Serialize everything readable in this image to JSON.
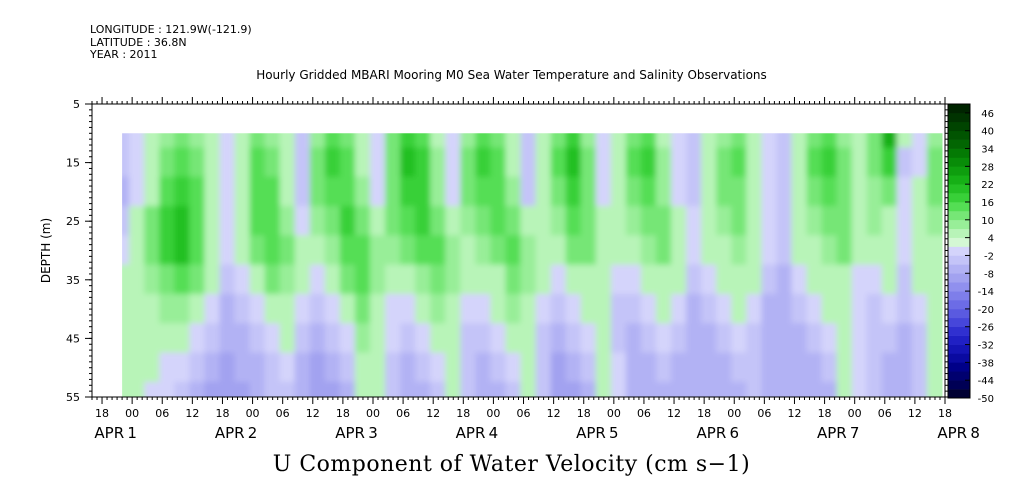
{
  "meta": {
    "longitude": "LONGITUDE : 121.9W(-121.9)",
    "latitude": "LATITUDE : 36.8N",
    "year": "YEAR : 2011"
  },
  "chart_title": "Hourly Gridded MBARI Mooring M0 Sea Water Temperature and Salinity Observations",
  "bottom_title": "U Component of Water Velocity (cm s−1)",
  "chart_data": {
    "type": "heatmap",
    "title": "Hourly Gridded MBARI Mooring M0 Sea Water Temperature and Salinity Observations",
    "xlabel": "",
    "ylabel": "DEPTH (m)",
    "colorbar_label": "U Component of Water Velocity (cm s−1)",
    "y_range": [
      55,
      5
    ],
    "y_ticks": [
      5,
      15,
      25,
      35,
      45,
      55
    ],
    "data_depth_range": [
      10,
      55
    ],
    "x_start_hour": 16,
    "x_end_hour": 186,
    "data_start_hour": 22,
    "x_hour_ticks": [
      "18",
      "00",
      "06",
      "12",
      "18",
      "00",
      "06",
      "12",
      "18",
      "00",
      "06",
      "12",
      "18",
      "00",
      "06",
      "12",
      "18",
      "00",
      "06",
      "12",
      "18",
      "00",
      "06",
      "12",
      "18",
      "00",
      "06",
      "12",
      "18",
      "00",
      "06",
      "12"
    ],
    "x_day_labels": [
      "APR 1",
      "APR 2",
      "APR 3",
      "APR 4",
      "APR 5",
      "APR 6",
      "APR 7",
      "APR 8"
    ],
    "colorbar_ticks": [
      "46",
      "40",
      "34",
      "28",
      "22",
      "16",
      "10",
      "4",
      "-2",
      "-8",
      "-14",
      "-20",
      "-26",
      "-32",
      "-38",
      "-44",
      "-50"
    ],
    "colorbar_levels": [
      -50,
      -47,
      -44,
      -41,
      -38,
      -35,
      -32,
      -29,
      -26,
      -23,
      -20,
      -17,
      -14,
      -11,
      -8,
      -5,
      -2,
      1,
      4,
      7,
      10,
      13,
      16,
      19,
      22,
      25,
      28,
      31,
      34,
      37,
      40,
      43,
      46,
      49
    ],
    "colorbar_colors": [
      "#000033",
      "#000055",
      "#00006f",
      "#000088",
      "#0a0aa0",
      "#1414b4",
      "#2020c4",
      "#3030d0",
      "#4646da",
      "#5a5ae0",
      "#6c6ce6",
      "#7e7eea",
      "#9090ee",
      "#a2a2f0",
      "#b2b2f4",
      "#c4c4f8",
      "#d4d4fb",
      "#d4f8d4",
      "#b8f4b8",
      "#98ee98",
      "#76e676",
      "#54de54",
      "#38d038",
      "#24c024",
      "#16b016",
      "#0e9e0e",
      "#088c08",
      "#047a04",
      "#026602",
      "#015401",
      "#004400",
      "#003300",
      "#002400"
    ],
    "column_hours": [
      22,
      25,
      28,
      31,
      34,
      37,
      40,
      43,
      46,
      49,
      52,
      55,
      58,
      61,
      64,
      67,
      70,
      73,
      76,
      79,
      82,
      85,
      88,
      91,
      94,
      97,
      100,
      103,
      106,
      109,
      112,
      115,
      118,
      121,
      124,
      127,
      130,
      133,
      136,
      139,
      142,
      145,
      148,
      151,
      154,
      157,
      160,
      163,
      166,
      169,
      172,
      175,
      178,
      181,
      184
    ],
    "row_depths": [
      10,
      15,
      20,
      25,
      30,
      35,
      40,
      45,
      50,
      55
    ],
    "u_values": [
      [
        -5,
        -2,
        4,
        7,
        10,
        7,
        4,
        -2,
        4,
        10,
        7,
        4,
        -5,
        7,
        13,
        10,
        4,
        -2,
        10,
        16,
        13,
        4,
        -2,
        7,
        13,
        10,
        4,
        -5,
        4,
        10,
        16,
        7,
        -2,
        4,
        10,
        13,
        4,
        -2,
        -5,
        4,
        7,
        10,
        4,
        -2,
        -5,
        4,
        10,
        13,
        7,
        4,
        10,
        22,
        4,
        -2,
        7
      ],
      [
        -5,
        -2,
        4,
        10,
        13,
        10,
        4,
        -2,
        4,
        13,
        10,
        4,
        -5,
        10,
        16,
        13,
        4,
        -2,
        10,
        19,
        16,
        7,
        -2,
        10,
        16,
        13,
        4,
        -5,
        4,
        13,
        19,
        10,
        -2,
        4,
        13,
        16,
        7,
        -2,
        -5,
        4,
        10,
        13,
        4,
        -2,
        -5,
        4,
        13,
        16,
        10,
        4,
        10,
        16,
        -5,
        -2,
        10
      ],
      [
        -8,
        -2,
        4,
        13,
        16,
        13,
        4,
        -2,
        4,
        13,
        13,
        4,
        -5,
        10,
        13,
        13,
        7,
        -2,
        10,
        16,
        16,
        7,
        -2,
        10,
        13,
        13,
        7,
        -5,
        4,
        10,
        16,
        10,
        -2,
        4,
        10,
        13,
        7,
        -2,
        -5,
        4,
        10,
        10,
        4,
        -2,
        -5,
        4,
        10,
        13,
        10,
        4,
        7,
        10,
        -2,
        4,
        10
      ],
      [
        -5,
        4,
        10,
        16,
        19,
        13,
        4,
        -2,
        4,
        13,
        13,
        7,
        -2,
        7,
        10,
        16,
        10,
        4,
        10,
        13,
        16,
        10,
        4,
        7,
        10,
        13,
        10,
        4,
        4,
        7,
        13,
        10,
        4,
        4,
        7,
        10,
        10,
        4,
        -2,
        4,
        7,
        10,
        4,
        -2,
        -5,
        4,
        7,
        10,
        10,
        4,
        7,
        4,
        -2,
        4,
        7
      ],
      [
        -2,
        4,
        10,
        16,
        19,
        13,
        4,
        -2,
        4,
        10,
        13,
        10,
        4,
        4,
        7,
        13,
        13,
        7,
        7,
        10,
        13,
        13,
        7,
        4,
        7,
        10,
        13,
        7,
        4,
        4,
        10,
        10,
        4,
        4,
        4,
        7,
        10,
        4,
        -2,
        4,
        4,
        7,
        4,
        -2,
        -5,
        4,
        4,
        7,
        10,
        4,
        4,
        4,
        -2,
        4,
        4
      ],
      [
        4,
        4,
        7,
        10,
        13,
        10,
        4,
        -5,
        -2,
        4,
        10,
        7,
        4,
        -2,
        4,
        10,
        13,
        7,
        4,
        4,
        7,
        10,
        7,
        4,
        4,
        4,
        10,
        7,
        4,
        -2,
        4,
        4,
        4,
        -2,
        -2,
        4,
        4,
        4,
        -5,
        -2,
        4,
        4,
        4,
        -5,
        -8,
        -2,
        4,
        4,
        4,
        -2,
        -2,
        4,
        -5,
        4,
        4
      ],
      [
        4,
        4,
        4,
        7,
        7,
        4,
        -2,
        -8,
        -5,
        -2,
        4,
        4,
        -2,
        -5,
        -2,
        4,
        10,
        4,
        -2,
        -2,
        4,
        7,
        4,
        -2,
        -2,
        4,
        7,
        4,
        -2,
        -5,
        -2,
        4,
        4,
        -5,
        -5,
        -2,
        4,
        -2,
        -8,
        -5,
        -2,
        4,
        -2,
        -8,
        -8,
        -5,
        -2,
        4,
        4,
        -2,
        -5,
        -2,
        -5,
        -2,
        4
      ],
      [
        4,
        4,
        4,
        4,
        4,
        -2,
        -5,
        -8,
        -8,
        -5,
        -2,
        4,
        -5,
        -8,
        -5,
        -2,
        7,
        4,
        -2,
        -5,
        -2,
        4,
        4,
        -5,
        -5,
        -2,
        4,
        4,
        -5,
        -8,
        -5,
        -2,
        4,
        -5,
        -8,
        -5,
        -2,
        -5,
        -8,
        -8,
        -5,
        -2,
        -5,
        -8,
        -8,
        -8,
        -5,
        -2,
        4,
        -2,
        -5,
        -5,
        -8,
        -5,
        4
      ],
      [
        4,
        4,
        4,
        -2,
        -2,
        -5,
        -8,
        -11,
        -8,
        -8,
        -5,
        -2,
        -8,
        -11,
        -8,
        -5,
        4,
        4,
        -5,
        -8,
        -5,
        -2,
        4,
        -5,
        -8,
        -5,
        -2,
        4,
        -5,
        -11,
        -8,
        -5,
        4,
        -2,
        -8,
        -8,
        -5,
        -8,
        -8,
        -8,
        -8,
        -5,
        -5,
        -8,
        -8,
        -8,
        -8,
        -5,
        4,
        -2,
        -5,
        -8,
        -8,
        -5,
        4
      ],
      [
        4,
        4,
        -2,
        -2,
        -5,
        -8,
        -11,
        -11,
        -11,
        -8,
        -5,
        -5,
        -8,
        -11,
        -11,
        -8,
        4,
        4,
        -5,
        -8,
        -8,
        -5,
        4,
        -5,
        -8,
        -8,
        -5,
        4,
        -5,
        -11,
        -11,
        -8,
        4,
        -2,
        -8,
        -8,
        -8,
        -8,
        -8,
        -8,
        -8,
        -8,
        -5,
        -8,
        -8,
        -8,
        -8,
        -8,
        4,
        -2,
        -5,
        -8,
        -8,
        -5,
        4
      ]
    ]
  }
}
